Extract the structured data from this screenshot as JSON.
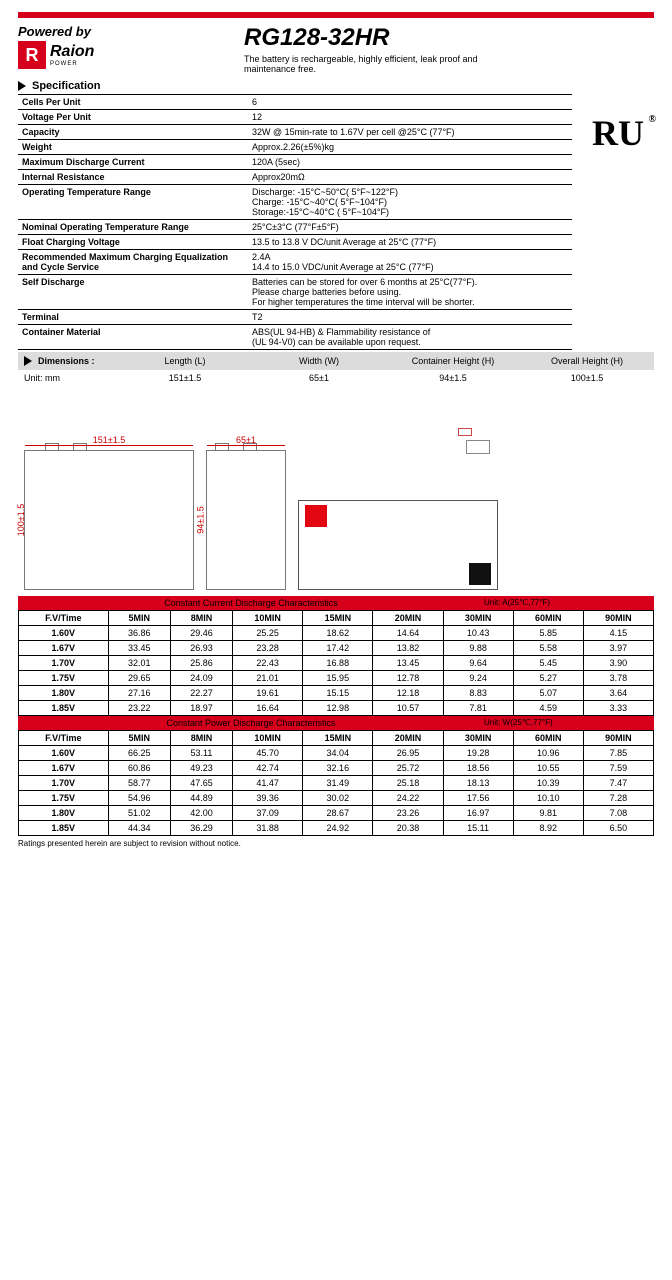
{
  "colors": {
    "accent": "#d6001c",
    "grey": "#dcdcdc",
    "border": "#000000"
  },
  "header": {
    "powered_by": "Powered by",
    "logo_text": "Raion",
    "logo_sub": "POWER",
    "model": "RG128-32HR",
    "subtitle": "The battery is rechargeable, highly efficient, leak proof and maintenance free."
  },
  "sections": {
    "spec": "Specification",
    "dim": "Dimensions :"
  },
  "certification_mark": "RU",
  "specs": [
    {
      "label": "Cells Per Unit",
      "value": "6"
    },
    {
      "label": "Voltage Per Unit",
      "value": "12"
    },
    {
      "label": "Capacity",
      "value": "32W @ 15min-rate to 1.67V per cell @25°C (77°F)"
    },
    {
      "label": "Weight",
      "value": "Approx.2.26(±5%)kg"
    },
    {
      "label": "Maximum Discharge Current",
      "value": "120A (5sec)"
    },
    {
      "label": "Internal Resistance",
      "value": "Approx20mΩ"
    },
    {
      "label": "Operating Temperature Range",
      "value": "Discharge: -15°C~50°C( 5°F~122°F)\nCharge: -15°C~40°C( 5°F~104°F)\nStorage:-15°C~40°C ( 5°F~104°F)"
    },
    {
      "label": "Nominal Operating Temperature Range",
      "value": "25°C±3°C (77°F±5°F)"
    },
    {
      "label": "Float Charging Voltage",
      "value": "13.5 to 13.8 V DC/unit Average at 25°C (77°F)"
    },
    {
      "label": "Recommended Maximum Charging Equalization and Cycle Service",
      "value": "2.4A\n14.4 to 15.0 VDC/unit Average at 25°C (77°F)"
    },
    {
      "label": "Self Discharge",
      "value": "Batteries can be stored for over 6 months at 25°C(77°F).\nPlease charge batteries before using.\nFor higher temperatures the time interval will be shorter."
    },
    {
      "label": "Terminal",
      "value": "T2"
    },
    {
      "label": "Container Material",
      "value": "ABS(UL 94-HB) & Flammability resistance of\n(UL 94-V0) can be available upon request."
    }
  ],
  "dimensions": {
    "unit_label": "Unit: mm",
    "cols": [
      "Length (L)",
      "Width (W)",
      "Container Height (H)",
      "Overall Height (H)"
    ],
    "vals": [
      "151±1.5",
      "65±1",
      "94±1.5",
      "100±1.5"
    ]
  },
  "drawing_labels": {
    "length": "151±1.5",
    "width": "65±1",
    "height_container": "94±1.5",
    "height_overall": "100±1.5"
  },
  "discharge_tables": [
    {
      "title": "Constant Current Discharge Characteristics",
      "unit": "Unit: A(25℃,77°F)",
      "header": [
        "F.V/Time",
        "5MIN",
        "8MIN",
        "10MIN",
        "15MIN",
        "20MIN",
        "30MIN",
        "60MIN",
        "90MIN"
      ],
      "rows": [
        [
          "1.60V",
          "36.86",
          "29.46",
          "25.25",
          "18.62",
          "14.64",
          "10.43",
          "5.85",
          "4.15"
        ],
        [
          "1.67V",
          "33.45",
          "26.93",
          "23.28",
          "17.42",
          "13.82",
          "9.88",
          "5.58",
          "3.97"
        ],
        [
          "1.70V",
          "32.01",
          "25.86",
          "22.43",
          "16.88",
          "13.45",
          "9.64",
          "5.45",
          "3.90"
        ],
        [
          "1.75V",
          "29.65",
          "24.09",
          "21.01",
          "15.95",
          "12.78",
          "9.24",
          "5.27",
          "3.78"
        ],
        [
          "1.80V",
          "27.16",
          "22.27",
          "19.61",
          "15.15",
          "12.18",
          "8.83",
          "5.07",
          "3.64"
        ],
        [
          "1.85V",
          "23.22",
          "18.97",
          "16.64",
          "12.98",
          "10.57",
          "7.81",
          "4.59",
          "3.33"
        ]
      ]
    },
    {
      "title": "Constant Power Discharge Characteristics",
      "unit": "Unit: W(25℃,77°F)",
      "header": [
        "F.V/Time",
        "5MIN",
        "8MIN",
        "10MIN",
        "15MIN",
        "20MIN",
        "30MIN",
        "60MIN",
        "90MIN"
      ],
      "rows": [
        [
          "1.60V",
          "66.25",
          "53.11",
          "45.70",
          "34.04",
          "26.95",
          "19.28",
          "10.96",
          "7.85"
        ],
        [
          "1.67V",
          "60.86",
          "49.23",
          "42.74",
          "32.16",
          "25.72",
          "18.56",
          "10.55",
          "7.59"
        ],
        [
          "1.70V",
          "58.77",
          "47.65",
          "41.47",
          "31.49",
          "25.18",
          "18.13",
          "10.39",
          "7.47"
        ],
        [
          "1.75V",
          "54.96",
          "44.89",
          "39.36",
          "30.02",
          "24.22",
          "17.56",
          "10.10",
          "7.28"
        ],
        [
          "1.80V",
          "51.02",
          "42.00",
          "37.09",
          "28.67",
          "23.26",
          "16.97",
          "9.81",
          "7.08"
        ],
        [
          "1.85V",
          "44.34",
          "36.29",
          "31.88",
          "24.92",
          "20.38",
          "15.11",
          "8.92",
          "6.50"
        ]
      ]
    }
  ],
  "footnote": "Ratings presented herein are subject to revision without notice."
}
